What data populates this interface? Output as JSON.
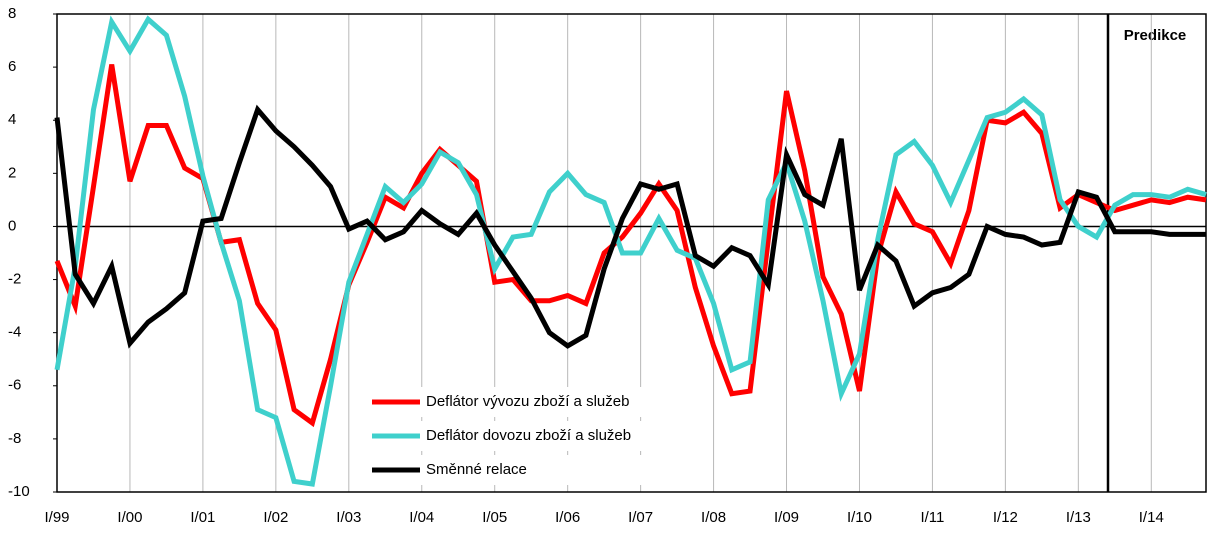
{
  "chart_data": {
    "type": "line",
    "annotation": "Predikce",
    "categories": [
      "I/99",
      null,
      null,
      null,
      "I/00",
      null,
      null,
      null,
      "I/01",
      null,
      null,
      null,
      "I/02",
      null,
      null,
      null,
      "I/03",
      null,
      null,
      null,
      "I/04",
      null,
      null,
      null,
      "I/05",
      null,
      null,
      null,
      "I/06",
      null,
      null,
      null,
      "I/07",
      null,
      null,
      null,
      "I/08",
      null,
      null,
      null,
      "I/09",
      null,
      null,
      null,
      "I/10",
      null,
      null,
      null,
      "I/11",
      null,
      null,
      null,
      "I/12",
      null,
      null,
      null,
      "I/13",
      null,
      null,
      null,
      "I/14",
      null,
      null,
      null
    ],
    "series": [
      {
        "name": "Deflátor vývozu zboží a služeb",
        "color": "#ff0000",
        "values": [
          -1.3,
          -3.0,
          1.5,
          6.1,
          1.7,
          3.8,
          3.8,
          2.2,
          1.8,
          -0.6,
          -0.5,
          -2.9,
          -3.9,
          -6.9,
          -7.4,
          -5.0,
          -2.2,
          -0.6,
          1.1,
          0.7,
          2.0,
          2.9,
          2.3,
          1.7,
          -2.1,
          -2.0,
          -2.8,
          -2.8,
          -2.6,
          -2.9,
          -1.0,
          -0.4,
          0.5,
          1.6,
          0.6,
          -2.3,
          -4.5,
          -6.3,
          -6.2,
          -0.5,
          5.1,
          2.1,
          -1.9,
          -3.3,
          -6.2,
          -1.1,
          1.3,
          0.1,
          -0.2,
          -1.4,
          0.6,
          4.0,
          3.9,
          4.3,
          3.5,
          0.7,
          1.2,
          0.9,
          0.6,
          0.8,
          1.0,
          0.9,
          1.1,
          1.0
        ]
      },
      {
        "name": "Deflátor dovozu zboží a služeb",
        "color": "#3fd0cc",
        "values": [
          -5.4,
          -1.5,
          4.4,
          7.7,
          6.6,
          7.8,
          7.2,
          4.9,
          1.9,
          -0.6,
          -2.8,
          -6.9,
          -7.2,
          -9.6,
          -9.7,
          -6.0,
          -2.1,
          -0.3,
          1.5,
          0.9,
          1.6,
          2.8,
          2.4,
          1.2,
          -1.6,
          -0.4,
          -0.3,
          1.3,
          2.0,
          1.2,
          0.9,
          -1.0,
          -1.0,
          0.3,
          -0.9,
          -1.2,
          -2.9,
          -5.4,
          -5.1,
          1.0,
          2.4,
          0.2,
          -2.8,
          -6.3,
          -4.8,
          -0.5,
          2.7,
          3.2,
          2.3,
          0.9,
          2.5,
          4.1,
          4.3,
          4.8,
          4.2,
          1.0,
          0.0,
          -0.4,
          0.8,
          1.2,
          1.2,
          1.1,
          1.4,
          1.2
        ]
      },
      {
        "name": "Směnné relace",
        "color": "#000000",
        "values": [
          4.1,
          -1.8,
          -2.9,
          -1.5,
          -4.4,
          -3.6,
          -3.1,
          -2.5,
          0.2,
          0.3,
          2.4,
          4.4,
          3.6,
          3.0,
          2.3,
          1.5,
          -0.1,
          0.2,
          -0.5,
          -0.2,
          0.6,
          0.1,
          -0.3,
          0.5,
          -0.7,
          -1.7,
          -2.7,
          -4.0,
          -4.5,
          -4.1,
          -1.6,
          0.3,
          1.6,
          1.4,
          1.6,
          -1.1,
          -1.5,
          -0.8,
          -1.1,
          -2.2,
          2.7,
          1.2,
          0.8,
          3.3,
          -2.4,
          -0.7,
          -1.3,
          -3.0,
          -2.5,
          -2.3,
          -1.8,
          0.0,
          -0.3,
          -0.4,
          -0.7,
          -0.6,
          1.3,
          1.1,
          -0.2,
          -0.2,
          -0.2,
          -0.3,
          -0.3,
          -0.3
        ]
      }
    ],
    "ylim": [
      -10,
      8
    ],
    "yticks": [
      -10,
      -8,
      -6,
      -4,
      -2,
      0,
      2,
      4,
      6,
      8
    ],
    "grid": true
  }
}
